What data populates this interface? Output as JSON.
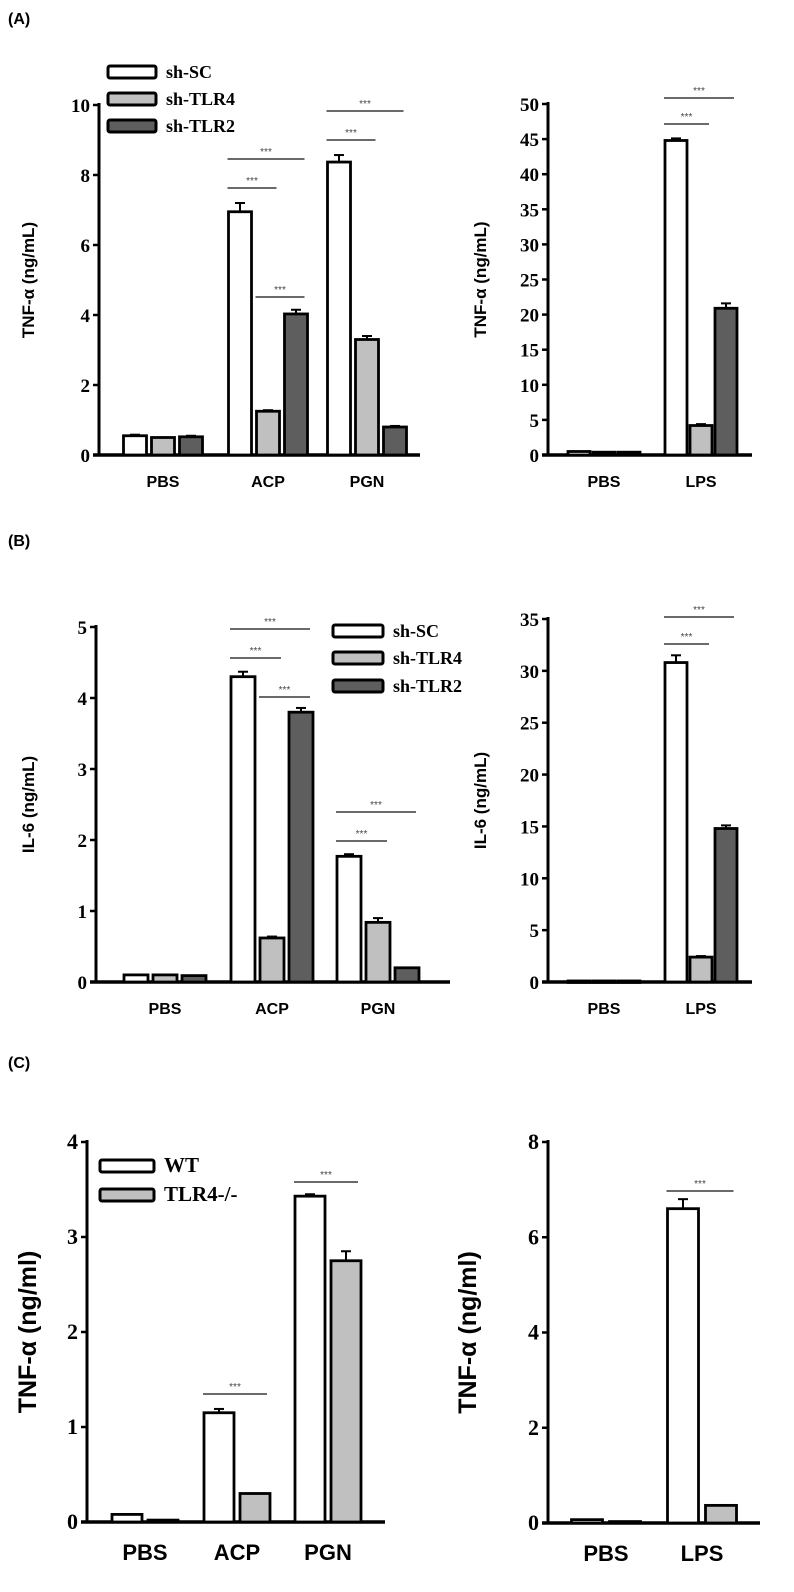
{
  "panel_labels": [
    "(A)",
    "(B)",
    "(C)"
  ],
  "colors": {
    "sh-SC": "#ffffff",
    "sh-TLR4": "#c0c0c0",
    "sh-TLR2": "#5e5e5e",
    "WT": "#ffffff",
    "TLR4-/-": "#c0c0c0",
    "outline": "#000000"
  },
  "chart_data": [
    {
      "type": "bar",
      "panel": "(A)",
      "ylabel": "TNF-α (ng/mL)",
      "xlabel": "",
      "ylim": [
        0,
        10
      ],
      "yticks": [
        "0",
        "2",
        "4",
        "6",
        "8",
        "10"
      ],
      "categories": [
        "PBS",
        "ACP",
        "PGN"
      ],
      "legend": true,
      "series": [
        {
          "name": "sh-SC",
          "values": [
            0.55,
            6.95,
            8.37
          ],
          "errors": [
            0.03,
            0.25,
            0.2
          ]
        },
        {
          "name": "sh-TLR4",
          "values": [
            0.5,
            1.25,
            3.3
          ],
          "errors": [
            0.02,
            0.03,
            0.1
          ]
        },
        {
          "name": "sh-TLR2",
          "values": [
            0.52,
            4.03,
            0.8
          ],
          "errors": [
            0.03,
            0.12,
            0.03
          ]
        }
      ],
      "significance": [
        {
          "category": "ACP",
          "between": [
            "sh-SC",
            "sh-TLR4"
          ],
          "label": "***"
        },
        {
          "category": "ACP",
          "between": [
            "sh-SC",
            "sh-TLR2"
          ],
          "label": "***"
        },
        {
          "category": "ACP",
          "between": [
            "sh-TLR4",
            "sh-TLR2"
          ],
          "label": "***"
        },
        {
          "category": "PGN",
          "between": [
            "sh-SC",
            "sh-TLR4"
          ],
          "label": "***"
        },
        {
          "category": "PGN",
          "between": [
            "sh-SC",
            "sh-TLR2"
          ],
          "label": "***"
        }
      ]
    },
    {
      "type": "bar",
      "panel": "(A)",
      "ylabel": "TNF-α (ng/mL)",
      "xlabel": "",
      "ylim": [
        0,
        50
      ],
      "yticks": [
        "0",
        "5",
        "10",
        "15",
        "20",
        "25",
        "30",
        "35",
        "40",
        "45",
        "50"
      ],
      "categories": [
        "PBS",
        "LPS"
      ],
      "legend": false,
      "series": [
        {
          "name": "sh-SC",
          "values": [
            0.5,
            44.8
          ],
          "errors": [
            0.05,
            0.3
          ]
        },
        {
          "name": "sh-TLR4",
          "values": [
            0.4,
            4.2
          ],
          "errors": [
            0.05,
            0.2
          ]
        },
        {
          "name": "sh-TLR2",
          "values": [
            0.4,
            20.9
          ],
          "errors": [
            0.05,
            0.7
          ]
        }
      ],
      "significance": [
        {
          "category": "LPS",
          "between": [
            "sh-SC",
            "sh-TLR4"
          ],
          "label": "***"
        },
        {
          "category": "LPS",
          "between": [
            "sh-SC",
            "sh-TLR2"
          ],
          "label": "***"
        }
      ]
    },
    {
      "type": "bar",
      "panel": "(B)",
      "ylabel": "IL-6 (ng/mL)",
      "xlabel": "",
      "ylim": [
        0,
        5
      ],
      "yticks": [
        "0",
        "1",
        "2",
        "3",
        "4",
        "5"
      ],
      "categories": [
        "PBS",
        "ACP",
        "PGN"
      ],
      "legend": true,
      "series": [
        {
          "name": "sh-SC",
          "values": [
            0.1,
            4.3,
            1.77
          ],
          "errors": [
            0.01,
            0.07,
            0.03
          ]
        },
        {
          "name": "sh-TLR4",
          "values": [
            0.1,
            0.62,
            0.84
          ],
          "errors": [
            0.01,
            0.02,
            0.06
          ]
        },
        {
          "name": "sh-TLR2",
          "values": [
            0.09,
            3.8,
            0.2
          ],
          "errors": [
            0.01,
            0.06,
            0.01
          ]
        }
      ],
      "significance": [
        {
          "category": "ACP",
          "between": [
            "sh-SC",
            "sh-TLR4"
          ],
          "label": "***"
        },
        {
          "category": "ACP",
          "between": [
            "sh-SC",
            "sh-TLR2"
          ],
          "label": "***"
        },
        {
          "category": "ACP",
          "between": [
            "sh-TLR4",
            "sh-TLR2"
          ],
          "label": "***"
        },
        {
          "category": "PGN",
          "between": [
            "sh-SC",
            "sh-TLR4"
          ],
          "label": "***"
        },
        {
          "category": "PGN",
          "between": [
            "sh-SC",
            "sh-TLR2"
          ],
          "label": "***"
        }
      ]
    },
    {
      "type": "bar",
      "panel": "(B)",
      "ylabel": "IL-6 (ng/mL)",
      "xlabel": "",
      "ylim": [
        0,
        35
      ],
      "yticks": [
        "0",
        "5",
        "10",
        "15",
        "20",
        "25",
        "30",
        "35"
      ],
      "categories": [
        "PBS",
        "LPS"
      ],
      "legend": false,
      "series": [
        {
          "name": "sh-SC",
          "values": [
            0.1,
            30.8
          ],
          "errors": [
            0.02,
            0.7
          ]
        },
        {
          "name": "sh-TLR4",
          "values": [
            0.1,
            2.4
          ],
          "errors": [
            0.02,
            0.1
          ]
        },
        {
          "name": "sh-TLR2",
          "values": [
            0.1,
            14.8
          ],
          "errors": [
            0.02,
            0.3
          ]
        }
      ],
      "significance": [
        {
          "category": "LPS",
          "between": [
            "sh-SC",
            "sh-TLR4"
          ],
          "label": "***"
        },
        {
          "category": "LPS",
          "between": [
            "sh-SC",
            "sh-TLR2"
          ],
          "label": "***"
        }
      ]
    },
    {
      "type": "bar",
      "panel": "(C)",
      "ylabel": "TNF-α (ng/ml)",
      "xlabel": "",
      "ylim": [
        0,
        4
      ],
      "yticks": [
        "0",
        "1",
        "2",
        "3",
        "4"
      ],
      "categories": [
        "PBS",
        "ACP",
        "PGN"
      ],
      "legend": true,
      "series": [
        {
          "name": "WT",
          "values": [
            0.08,
            1.15,
            3.43
          ],
          "errors": [
            0.01,
            0.04,
            0.02
          ]
        },
        {
          "name": "TLR4-/-",
          "values": [
            0.02,
            0.3,
            2.75
          ],
          "errors": [
            0.01,
            0.01,
            0.1
          ]
        }
      ],
      "significance": [
        {
          "category": "ACP",
          "between": [
            "WT",
            "TLR4-/-"
          ],
          "label": "***"
        },
        {
          "category": "PGN",
          "between": [
            "WT",
            "TLR4-/-"
          ],
          "label": "***"
        }
      ]
    },
    {
      "type": "bar",
      "panel": "(C)",
      "ylabel": "TNF-α (ng/ml)",
      "xlabel": "",
      "ylim": [
        0,
        8
      ],
      "yticks": [
        "0",
        "2",
        "4",
        "6",
        "8"
      ],
      "categories": [
        "PBS",
        "LPS"
      ],
      "legend": false,
      "series": [
        {
          "name": "WT",
          "values": [
            0.07,
            6.6
          ],
          "errors": [
            0.01,
            0.2
          ]
        },
        {
          "name": "TLR4-/-",
          "values": [
            0.03,
            0.37
          ],
          "errors": [
            0.01,
            0.02
          ]
        }
      ],
      "significance": [
        {
          "category": "LPS",
          "between": [
            "WT",
            "TLR4-/-"
          ],
          "label": "***"
        }
      ]
    }
  ]
}
